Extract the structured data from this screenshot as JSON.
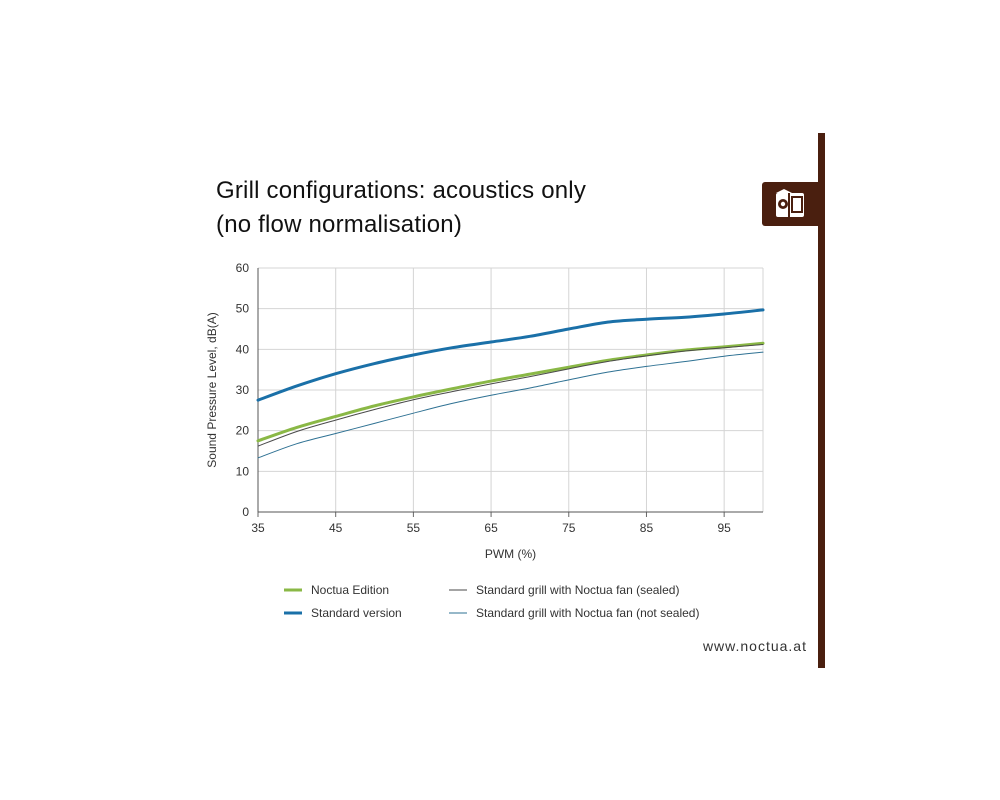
{
  "header": {
    "title_line1": "Grill configurations: acoustics only",
    "title_line2": "(no flow normalisation)"
  },
  "footer": {
    "website": "www.noctua.at"
  },
  "brand": {
    "color": "#4a1f0f",
    "logo_icon": "owl-logo-icon"
  },
  "chart_data": {
    "type": "line",
    "title": "Grill configurations: acoustics only (no flow normalisation)",
    "xlabel": "PWM (%)",
    "ylabel": "Sound Pressure Level, dB(A)",
    "xlim": [
      35,
      100
    ],
    "ylim": [
      0,
      60
    ],
    "xticks": [
      35,
      45,
      55,
      65,
      75,
      85,
      95
    ],
    "yticks": [
      0,
      10,
      20,
      30,
      40,
      50,
      60
    ],
    "grid": true,
    "legend_position": "bottom",
    "series": [
      {
        "name": "Noctua Edition",
        "color": "#8ab846",
        "x": [
          35,
          40,
          45,
          50,
          55,
          60,
          65,
          70,
          75,
          80,
          85,
          90,
          95,
          100
        ],
        "y": [
          17.5,
          20.8,
          23.5,
          26.1,
          28.3,
          30.3,
          32.2,
          33.9,
          35.6,
          37.3,
          38.6,
          39.8,
          40.6,
          41.5
        ]
      },
      {
        "name": "Standard version",
        "color": "#1a70a8",
        "x": [
          35,
          40,
          45,
          50,
          55,
          60,
          65,
          70,
          75,
          80,
          85,
          90,
          95,
          100
        ],
        "y": [
          27.5,
          31.0,
          34.0,
          36.5,
          38.6,
          40.4,
          41.8,
          43.2,
          45.0,
          46.7,
          47.4,
          47.9,
          48.7,
          49.7
        ]
      },
      {
        "name": "Standard grill with Noctua fan (sealed)",
        "color": "#4a4a4a",
        "x": [
          35,
          40,
          45,
          50,
          55,
          60,
          65,
          70,
          75,
          80,
          85,
          90,
          95,
          100
        ],
        "y": [
          16.2,
          19.8,
          22.6,
          25.2,
          27.6,
          29.6,
          31.5,
          33.3,
          35.2,
          37.0,
          38.4,
          39.6,
          40.4,
          41.2
        ]
      },
      {
        "name": "Standard grill with Noctua fan (not sealed)",
        "color": "#2e7193",
        "x": [
          35,
          40,
          45,
          50,
          55,
          60,
          65,
          70,
          75,
          80,
          85,
          90,
          95,
          100
        ],
        "y": [
          13.3,
          16.8,
          19.3,
          21.8,
          24.3,
          26.7,
          28.7,
          30.5,
          32.5,
          34.4,
          35.8,
          37.0,
          38.3,
          39.3
        ]
      }
    ]
  }
}
